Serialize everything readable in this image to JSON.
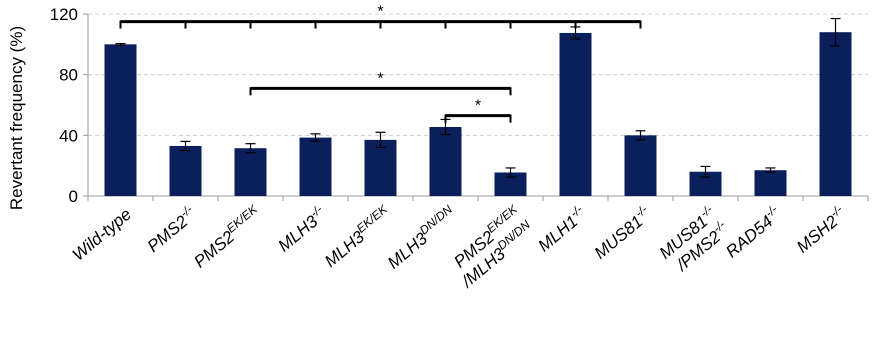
{
  "chart_data": {
    "type": "bar",
    "xlabel": "",
    "ylabel": "Revertant frequency (%)",
    "ylim": [
      0,
      120
    ],
    "yticks": [
      0,
      40,
      80,
      120
    ],
    "grid": true,
    "colors": {
      "bar": "#0b1f5c",
      "grid": "#cfcfcf",
      "axis": "#999999",
      "bracket": "#000000"
    },
    "categories": [
      "Wild-type",
      "PMS2-/-",
      "PMS2EK/EK",
      "MLH3-/-",
      "MLH3EK/EK",
      "MLH3DN/DN",
      "PMS2EK/EK/MLH3DN/DN",
      "MLH1-/-",
      "MUS81-/-",
      "MUS81-/-/PMS2-/-",
      "RAD54-/-",
      "MSH2-/-"
    ],
    "category_parts": [
      [
        [
          "Wild-type",
          ""
        ]
      ],
      [
        [
          "PMS2",
          "-/-"
        ]
      ],
      [
        [
          "PMS2",
          "EK/EK"
        ]
      ],
      [
        [
          "MLH3",
          "-/-"
        ]
      ],
      [
        [
          "MLH3",
          "EK/EK"
        ]
      ],
      [
        [
          "MLH3",
          "DN/DN"
        ]
      ],
      [
        [
          "PMS2",
          "EK/EK"
        ],
        [
          "/MLH3",
          "DN/DN"
        ]
      ],
      [
        [
          "MLH1",
          "-/-"
        ]
      ],
      [
        [
          "MUS81",
          "-/-"
        ]
      ],
      [
        [
          "MUS81",
          "-/-"
        ],
        [
          "/PMS2",
          "-/-"
        ]
      ],
      [
        [
          "RAD54",
          "-/-"
        ]
      ],
      [
        [
          "MSH2",
          "-/-"
        ]
      ]
    ],
    "values": [
      100,
      33,
      31.5,
      38.5,
      37,
      45.5,
      15.5,
      107.5,
      40,
      16,
      17,
      108
    ],
    "errors": [
      0.5,
      3,
      3,
      2.5,
      5,
      5,
      3,
      4,
      3,
      3.5,
      1.5,
      9
    ],
    "significance": [
      {
        "from": 0,
        "to": 8,
        "ticks": [
          0,
          1,
          2,
          3,
          4,
          5,
          6,
          7,
          8
        ],
        "y": 115,
        "label": "*"
      },
      {
        "from": 2,
        "to": 6,
        "ticks": [
          2,
          6
        ],
        "y": 71,
        "label": "*"
      },
      {
        "from": 5,
        "to": 6,
        "ticks": [
          5,
          6
        ],
        "y": 53,
        "label": "*"
      }
    ]
  }
}
